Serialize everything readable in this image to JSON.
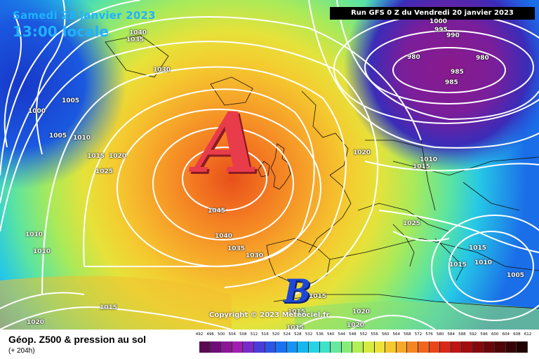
{
  "header": {
    "date": "Samedi 28 janvier 2023",
    "time": "13:00 locale",
    "run": "Run GFS 0 Z du Vendredi 20 janvier 2023"
  },
  "copyright": "Copyright © 2023 Meteociel.fr",
  "pressure_centers": {
    "high": "A",
    "low": "B"
  },
  "isobar_labels": [
    "1040",
    "1035",
    "1030",
    "1005",
    "1000",
    "1005",
    "1010",
    "1015",
    "1020",
    "1025",
    "1020",
    "1010",
    "1010",
    "1015",
    "1020",
    "1045",
    "1040",
    "1035",
    "1030",
    "1015",
    "1015",
    "1015",
    "1020",
    "1020",
    "1020",
    "1015",
    "1010",
    "1025",
    "1015",
    "1015",
    "1010",
    "1005",
    "995",
    "990",
    "980",
    "980",
    "985",
    "985",
    "1000"
  ],
  "footer": {
    "title": "Géop. Z500 & pression au sol",
    "subtitle": "(+ 204h)"
  },
  "scale": {
    "ticks": [
      "492",
      "496",
      "500",
      "504",
      "508",
      "512",
      "516",
      "520",
      "524",
      "528",
      "532",
      "536",
      "540",
      "544",
      "548",
      "552",
      "556",
      "560",
      "564",
      "568",
      "572",
      "576",
      "580",
      "584",
      "588",
      "592",
      "596",
      "600",
      "604",
      "608",
      "612"
    ],
    "colors": [
      "#5a0a52",
      "#6e0d78",
      "#8a1696",
      "#a01fb0",
      "#7a2ac8",
      "#4a3cd8",
      "#2a55e6",
      "#1a72f0",
      "#1693f2",
      "#16b6ee",
      "#24d4e6",
      "#40e2c8",
      "#66e8a0",
      "#8aec78",
      "#b2ee58",
      "#d6ec40",
      "#eee23a",
      "#f6c830",
      "#f6a82a",
      "#f48624",
      "#f0641e",
      "#e8461a",
      "#d82818",
      "#c01414",
      "#a00e10",
      "#84090c",
      "#6a0608",
      "#500406",
      "#380204",
      "#220102"
    ]
  }
}
